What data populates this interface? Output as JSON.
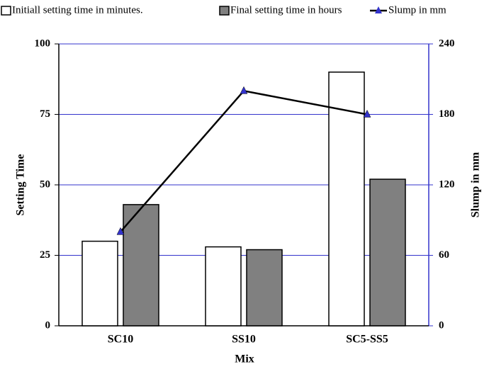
{
  "chart_data": {
    "type": "bar",
    "categories": [
      "SC10",
      "SS10",
      "SC5-SS5"
    ],
    "x_label": "Mix",
    "y_label": "Setting Time",
    "y2_label": "Slump in mm",
    "series": [
      {
        "name": "Initiall setting time in minutes.",
        "color": "#ffffff",
        "values": [
          30,
          28,
          90
        ]
      },
      {
        "name": "Final setting time in hours",
        "color": "#808080",
        "values": [
          43,
          27,
          52
        ]
      },
      {
        "name": "Slump in mm",
        "type": "line",
        "axis": "y2",
        "color": "#000000",
        "marker_color": "#3333cc",
        "values": [
          80,
          200,
          180
        ]
      }
    ],
    "ylim": [
      0,
      100
    ],
    "yticks": [
      0,
      25,
      50,
      75,
      100
    ],
    "y2lim": [
      0,
      240
    ],
    "y2ticks": [
      0,
      60,
      120,
      180,
      240
    ],
    "grid": true,
    "grid_color": "#3333cc",
    "legend": "top"
  }
}
